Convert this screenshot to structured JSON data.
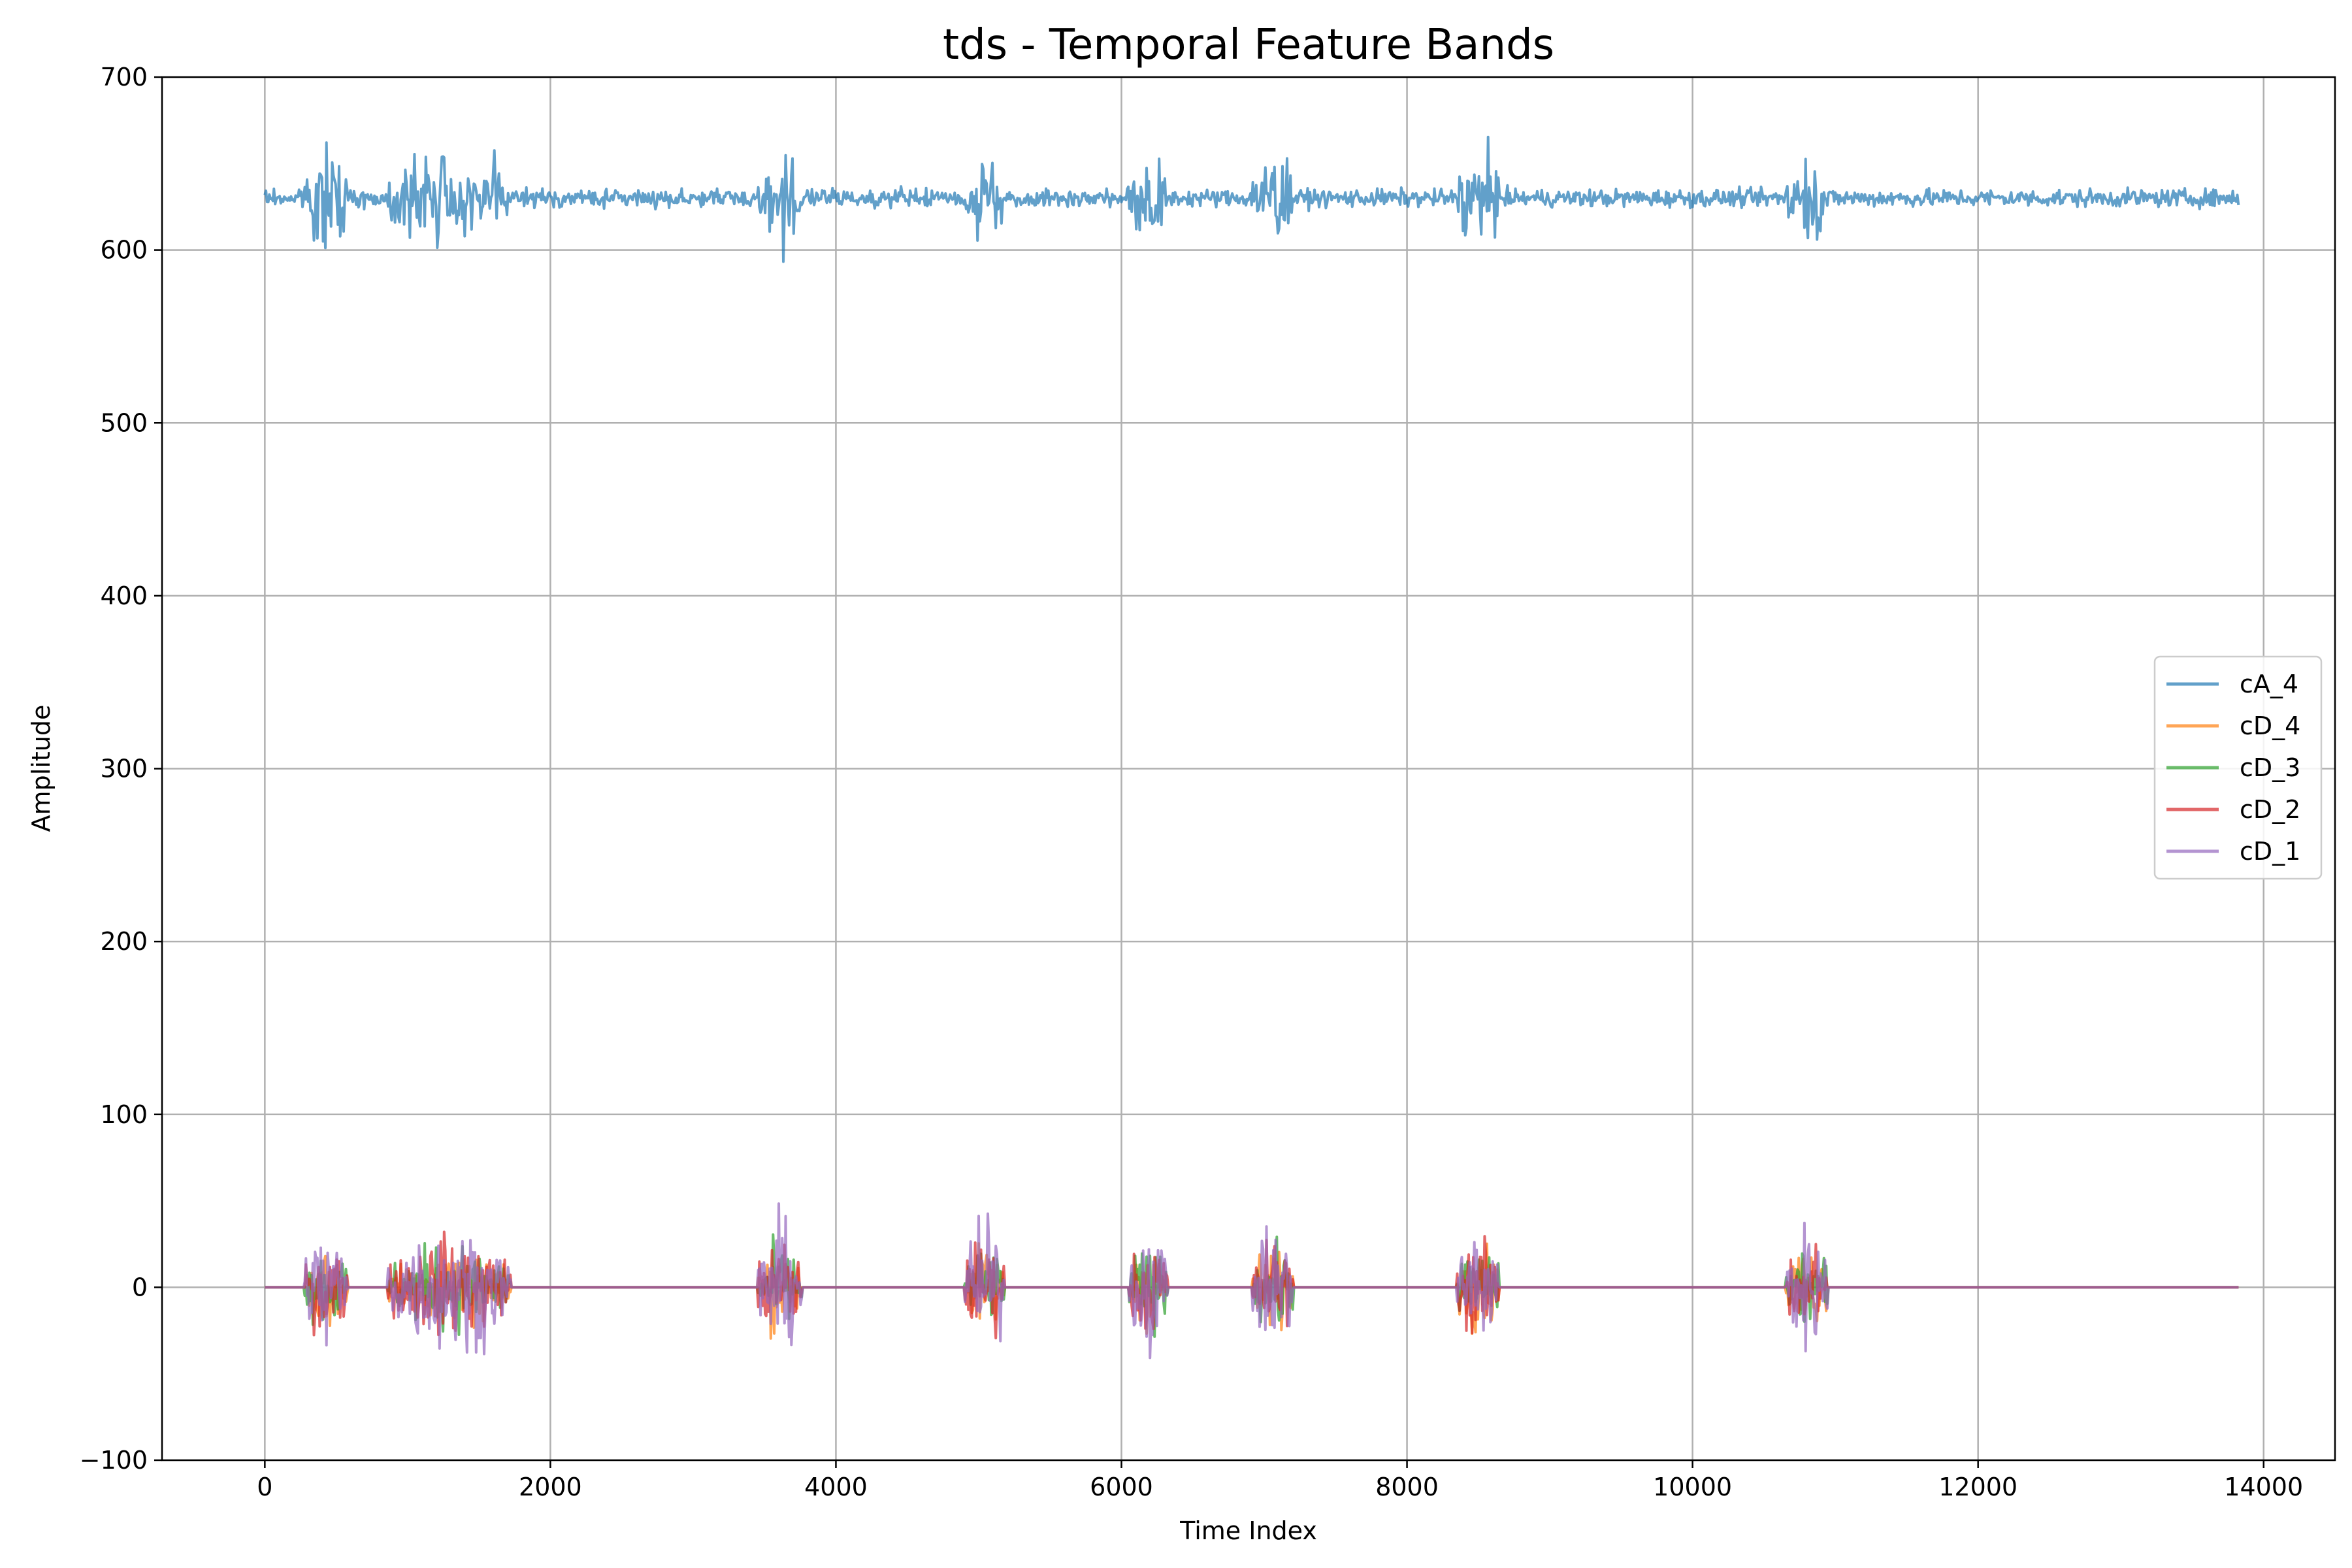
{
  "chart_data": {
    "type": "line",
    "title": "tds - Temporal Feature Bands",
    "xlabel": "Time Index",
    "ylabel": "Amplitude",
    "xlim": [
      -720,
      14500
    ],
    "ylim": [
      -100,
      700
    ],
    "xticks": [
      0,
      2000,
      4000,
      6000,
      8000,
      10000,
      12000,
      14000
    ],
    "yticks": [
      -100,
      0,
      100,
      200,
      300,
      400,
      500,
      600,
      700
    ],
    "grid": true,
    "legend_position": "center-right",
    "series_x_range": [
      0,
      13830
    ],
    "bursts": [
      {
        "start": 280,
        "end": 580
      },
      {
        "start": 860,
        "end": 1720
      },
      {
        "start": 3450,
        "end": 3760
      },
      {
        "start": 4900,
        "end": 5180
      },
      {
        "start": 6050,
        "end": 6320
      },
      {
        "start": 6920,
        "end": 7200
      },
      {
        "start": 8350,
        "end": 8640
      },
      {
        "start": 10650,
        "end": 10950
      }
    ],
    "series": [
      {
        "name": "cA_4",
        "color": "#1f77b4",
        "baseline": 630,
        "noise": 2.5,
        "burst_amp": 13
      },
      {
        "name": "cD_4",
        "color": "#ff7f0e",
        "baseline": 0,
        "noise": 0,
        "burst_amp": 12
      },
      {
        "name": "cD_3",
        "color": "#2ca02c",
        "baseline": 0,
        "noise": 0,
        "burst_amp": 12
      },
      {
        "name": "cD_2",
        "color": "#d62728",
        "baseline": 0,
        "noise": 0,
        "burst_amp": 14
      },
      {
        "name": "cD_1",
        "color": "#9467bd",
        "baseline": 0,
        "noise": 0,
        "burst_amp": 18
      }
    ]
  }
}
